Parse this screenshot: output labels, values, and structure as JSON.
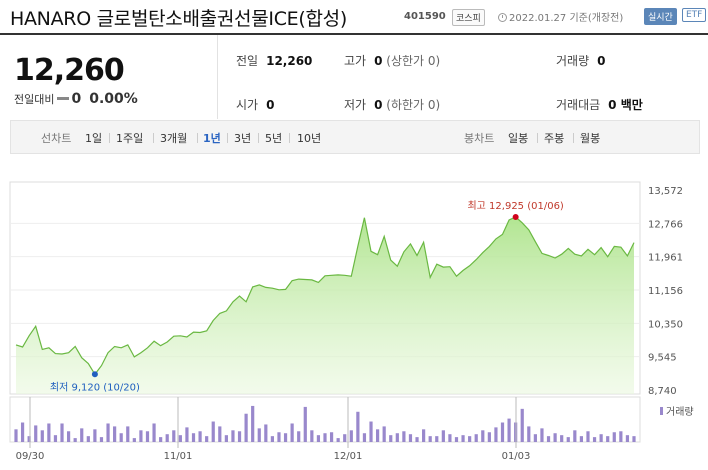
{
  "header": {
    "name": "HANARO 글로벌탄소배출권선물ICE(합성)",
    "code": "401590",
    "market": "코스피",
    "date": "2022.01.27",
    "date_note": "기준(개장전)",
    "realtime_label": "실시간",
    "etf_label": "ETF"
  },
  "price": {
    "current": "12,260",
    "change_label": "전일대비",
    "change_value": "0",
    "change_pct": "0.00%"
  },
  "stats": {
    "prev_close_label": "전일",
    "prev_close": "12,260",
    "high_label": "고가",
    "high": "0",
    "high_note": "(상한가 0)",
    "volume_label": "거래량",
    "volume": "0",
    "open_label": "시가",
    "open": "0",
    "low_label": "저가",
    "low": "0",
    "low_note": "(하한가 0)",
    "amount_label": "거래대금",
    "amount": "0 백만"
  },
  "tabs": {
    "line_label": "선차트",
    "line": [
      "1일",
      "1주일",
      "3개월",
      "1년",
      "3년",
      "5년",
      "10년"
    ],
    "active": "1년",
    "candle_label": "봉차트",
    "candle": [
      "일봉",
      "주봉",
      "월봉"
    ]
  },
  "chart_data": {
    "type": "area",
    "y_ticks": [
      "13,572",
      "12,766",
      "11,961",
      "11,156",
      "10,350",
      "9,545",
      "8,740"
    ],
    "ylim": [
      8740,
      13572
    ],
    "x_labels": [
      "09/30",
      "11/01",
      "12/01",
      "01/03"
    ],
    "high_annotation": "최고 12,925 (01/06)",
    "low_annotation": "최저 9,120 (10/20)",
    "volume_legend": "거래량",
    "values": [
      9830,
      9780,
      10050,
      10280,
      9720,
      9760,
      9620,
      9610,
      9640,
      9790,
      9520,
      9380,
      9120,
      9330,
      9640,
      9790,
      9760,
      9830,
      9540,
      9640,
      9760,
      9920,
      9810,
      9900,
      10040,
      10050,
      10020,
      10140,
      10130,
      10170,
      10420,
      10590,
      10650,
      10870,
      11010,
      10870,
      11230,
      11280,
      11220,
      11200,
      11160,
      11170,
      11380,
      11420,
      11410,
      11400,
      11340,
      11500,
      11510,
      11520,
      11510,
      11490,
      12220,
      12900,
      12090,
      12010,
      12450,
      11880,
      11730,
      12080,
      12270,
      11990,
      12310,
      11460,
      11780,
      11710,
      11720,
      11490,
      11630,
      11740,
      11890,
      12060,
      12210,
      12390,
      12500,
      12850,
      12920,
      12780,
      12610,
      12320,
      12040,
      11990,
      11930,
      12020,
      12160,
      12020,
      11980,
      12140,
      12010,
      12180,
      11960,
      12210,
      12190,
      11980,
      12300
    ],
    "color": "#7acb52",
    "volumes": [
      13,
      20,
      6,
      17,
      12,
      19,
      7,
      19,
      11,
      4,
      14,
      6,
      13,
      5,
      19,
      16,
      9,
      16,
      4,
      12,
      11,
      19,
      5,
      8,
      12,
      7,
      15,
      9,
      11,
      6,
      21,
      16,
      7,
      12,
      11,
      29,
      37,
      14,
      18,
      6,
      10,
      9,
      19,
      11,
      36,
      12,
      7,
      9,
      10,
      4,
      8,
      12,
      31,
      9,
      21,
      13,
      16,
      7,
      9,
      11,
      8,
      5,
      13,
      6,
      6,
      12,
      8,
      5,
      7,
      6,
      8,
      12,
      10,
      15,
      20,
      24,
      20,
      34,
      16,
      8,
      14,
      6,
      9,
      7,
      5,
      12,
      6,
      11,
      5,
      8,
      6,
      10,
      11,
      7,
      6
    ],
    "volume_color": "#9988cc"
  }
}
